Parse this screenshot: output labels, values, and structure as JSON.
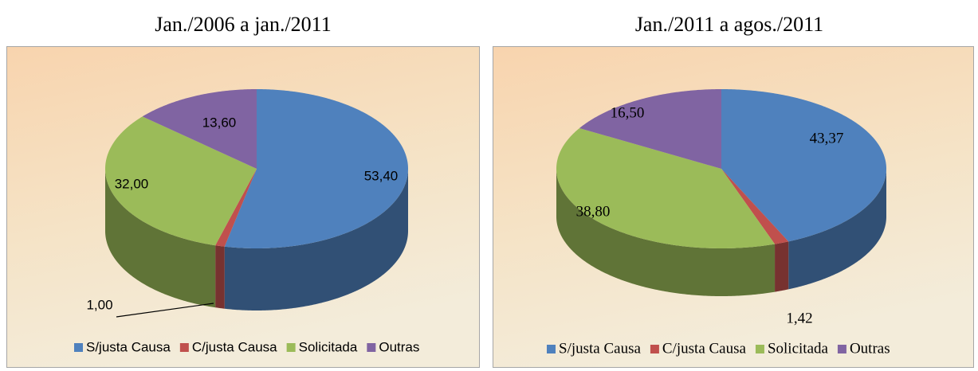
{
  "chart_data": [
    {
      "type": "pie",
      "title": "Jan./2006 a jan./2011",
      "categories": [
        "S/justa Causa",
        "C/justa Causa",
        "Solicitada",
        "Outras"
      ],
      "values": [
        53.4,
        1.0,
        32.0,
        13.6
      ],
      "value_labels": [
        "53,40",
        "1,00",
        "32,00",
        "13,60"
      ],
      "colors": [
        "#4f81bd",
        "#c0504d",
        "#9bbb59",
        "#8064a2"
      ]
    },
    {
      "type": "pie",
      "title": "Jan./2011 a agos./2011",
      "categories": [
        "S/justa Causa",
        "C/justa Causa",
        "Solicitada",
        "Outras"
      ],
      "values": [
        43.37,
        1.42,
        38.8,
        16.5
      ],
      "value_labels": [
        "43,37",
        "1,42",
        "38,80",
        "16,50"
      ],
      "colors": [
        "#4f81bd",
        "#c0504d",
        "#9bbb59",
        "#8064a2"
      ]
    }
  ]
}
